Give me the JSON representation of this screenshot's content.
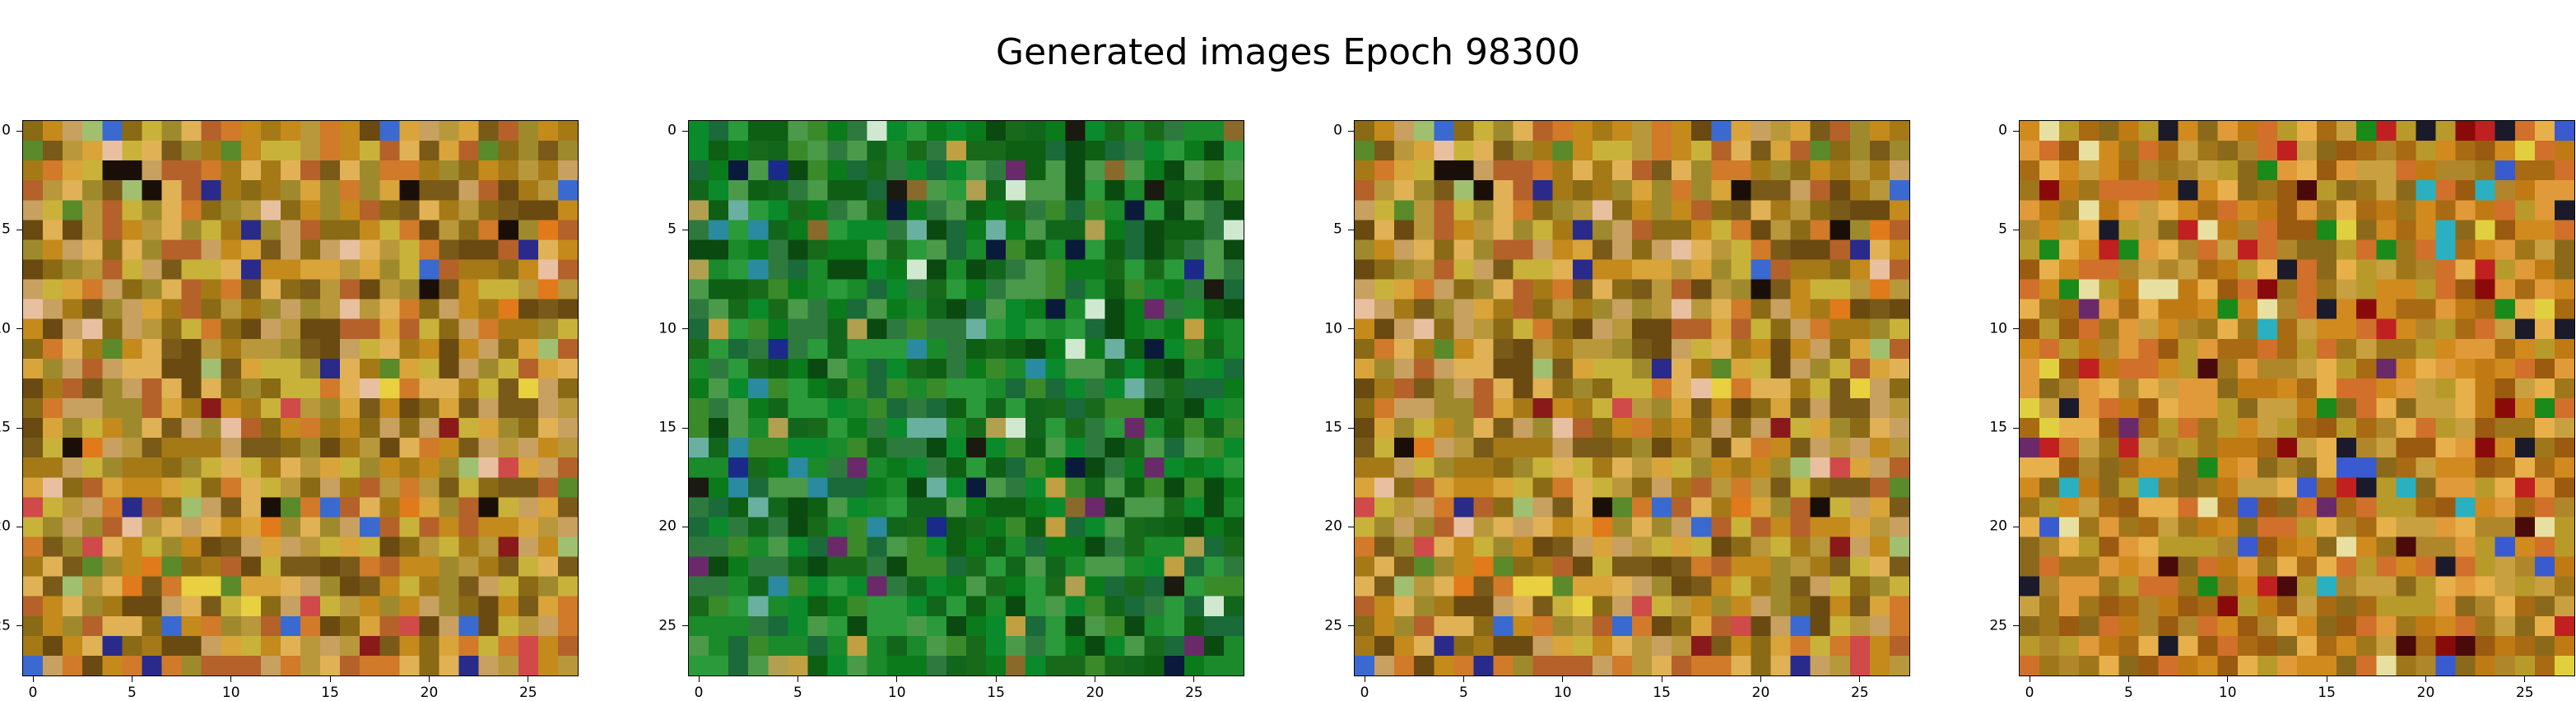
{
  "figure": {
    "title": "Generated images Epoch 98300"
  },
  "chart_data": [
    {
      "type": "heatmap",
      "name": "",
      "grid_size": 28,
      "dominant_palette": "warm-olive",
      "xlim": [
        -0.5,
        27.5
      ],
      "ylim": [
        27.5,
        -0.5
      ],
      "xticks": [
        "0",
        "5",
        "10",
        "15",
        "20",
        "25"
      ],
      "yticks": [
        "0",
        "5",
        "10",
        "15",
        "20",
        "25"
      ],
      "palette": [
        "#c48a1c",
        "#a57a16",
        "#d9a43a",
        "#8a6a14",
        "#c9b23a",
        "#b5612a",
        "#e0b255",
        "#7a5a18",
        "#9e8a2c",
        "#d07a2a",
        "#6a4a10",
        "#c8a060",
        "#b8983a"
      ],
      "accents": [
        "#1a0f08",
        "#2a2a8a",
        "#3a6ad0",
        "#8a1a1a",
        "#d04a4a",
        "#e8c0a0",
        "#5a8a2a",
        "#a0c070",
        "#e8d040",
        "#e07a1a"
      ],
      "accent_rate": 0.11,
      "seed": 11
    },
    {
      "type": "heatmap",
      "name": "",
      "grid_size": 28,
      "dominant_palette": "green",
      "xlim": [
        -0.5,
        27.5
      ],
      "ylim": [
        27.5,
        -0.5
      ],
      "xticks": [
        "0",
        "5",
        "10",
        "15",
        "20",
        "25"
      ],
      "yticks": [
        "0",
        "5",
        "10",
        "15",
        "20",
        "25"
      ],
      "palette": [
        "#0a7a1a",
        "#1a8a2a",
        "#0e5e14",
        "#2a9a3a",
        "#11661c",
        "#3a8a2a",
        "#0a4a10",
        "#4a9a4a",
        "#1a6a3a",
        "#2e7a3e",
        "#0a8a2a",
        "#186a1a"
      ],
      "accents": [
        "#0a1a3a",
        "#1a2a8a",
        "#6ab0a0",
        "#d0e8d0",
        "#2a8aa0",
        "#8a6a2a",
        "#c0a040",
        "#6a2a6a",
        "#1a1a10",
        "#b0a050"
      ],
      "accent_rate": 0.12,
      "seed": 29
    },
    {
      "type": "heatmap",
      "name": "",
      "grid_size": 28,
      "dominant_palette": "warm-olive",
      "xlim": [
        -0.5,
        27.5
      ],
      "ylim": [
        27.5,
        -0.5
      ],
      "xticks": [
        "0",
        "5",
        "10",
        "15",
        "20",
        "25"
      ],
      "yticks": [
        "0",
        "5",
        "10",
        "15",
        "20",
        "25"
      ],
      "palette": [
        "#c48a1c",
        "#a57a16",
        "#d9a43a",
        "#8a6a14",
        "#c9b23a",
        "#b5612a",
        "#e0b255",
        "#7a5a18",
        "#9e8a2c",
        "#d07a2a",
        "#6a4a10",
        "#c8a060",
        "#b8983a"
      ],
      "accents": [
        "#1a0f08",
        "#2a2a8a",
        "#3a6ad0",
        "#8a1a1a",
        "#d04a4a",
        "#e8c0a0",
        "#5a8a2a",
        "#a0c070",
        "#e8d040",
        "#e07a1a"
      ],
      "accent_rate": 0.11,
      "seed": 11
    },
    {
      "type": "heatmap",
      "name": "",
      "grid_size": 28,
      "dominant_palette": "orange-brown",
      "xlim": [
        -0.5,
        27.5
      ],
      "ylim": [
        27.5,
        -0.5
      ],
      "xticks": [
        "0",
        "5",
        "10",
        "15",
        "20",
        "25"
      ],
      "yticks": [
        "0",
        "5",
        "10",
        "15",
        "20",
        "25"
      ],
      "palette": [
        "#c07a14",
        "#d08a1e",
        "#a86a12",
        "#b89a2a",
        "#e09a3a",
        "#9a5a10",
        "#c8a040",
        "#8a6a1a",
        "#d0702a",
        "#b0862a",
        "#e8b04a",
        "#a0761a"
      ],
      "accents": [
        "#4a0a0a",
        "#8a0a0a",
        "#1a1a2a",
        "#2ab0c0",
        "#3a5ad0",
        "#1a8a1a",
        "#e8e0a0",
        "#c02020",
        "#6a2a6a",
        "#e0d040"
      ],
      "accent_rate": 0.14,
      "seed": 53
    }
  ]
}
